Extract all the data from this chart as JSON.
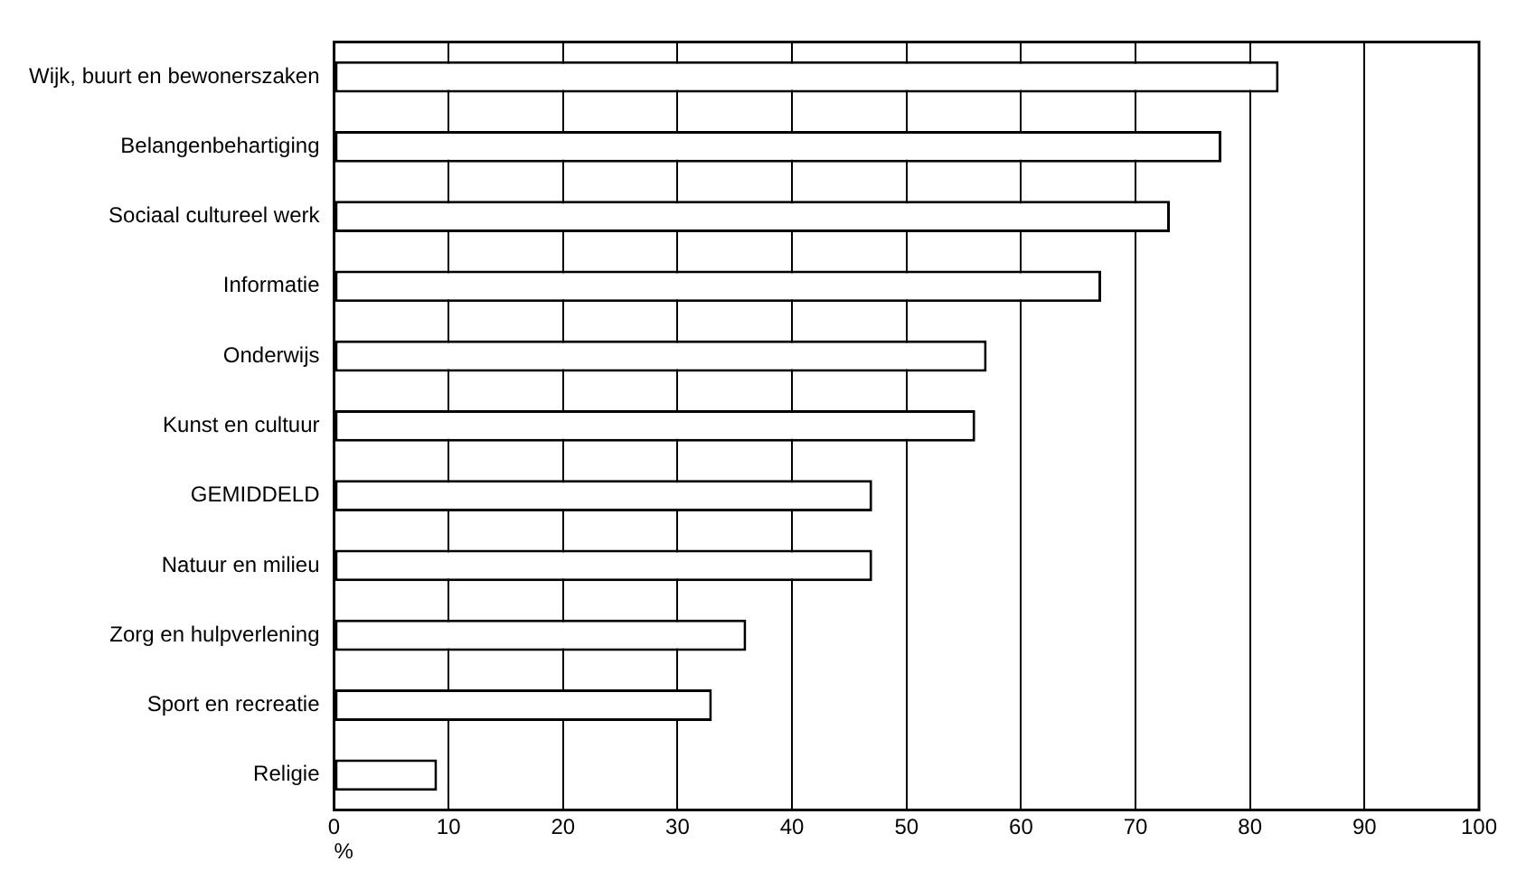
{
  "chart_data": {
    "type": "bar",
    "orientation": "horizontal",
    "xlabel": "%",
    "categories": [
      "Wijk, buurt en bewonerszaken",
      "Belangenbehartiging",
      "Sociaal cultureel werk",
      "Informatie",
      "Onderwijs",
      "Kunst en cultuur",
      "GEMIDDELD",
      "Natuur en milieu",
      "Zorg en hulpverlening",
      "Sport en recreatie",
      "Religie"
    ],
    "values": [
      82.5,
      77.5,
      73,
      67,
      57,
      56,
      47,
      47,
      36,
      33,
      9
    ],
    "color": "#ffffff",
    "xlim": [
      0,
      100
    ],
    "xticks": [
      0,
      10,
      20,
      30,
      40,
      50,
      60,
      70,
      80,
      90,
      100
    ],
    "grid": "x",
    "legend": false
  }
}
